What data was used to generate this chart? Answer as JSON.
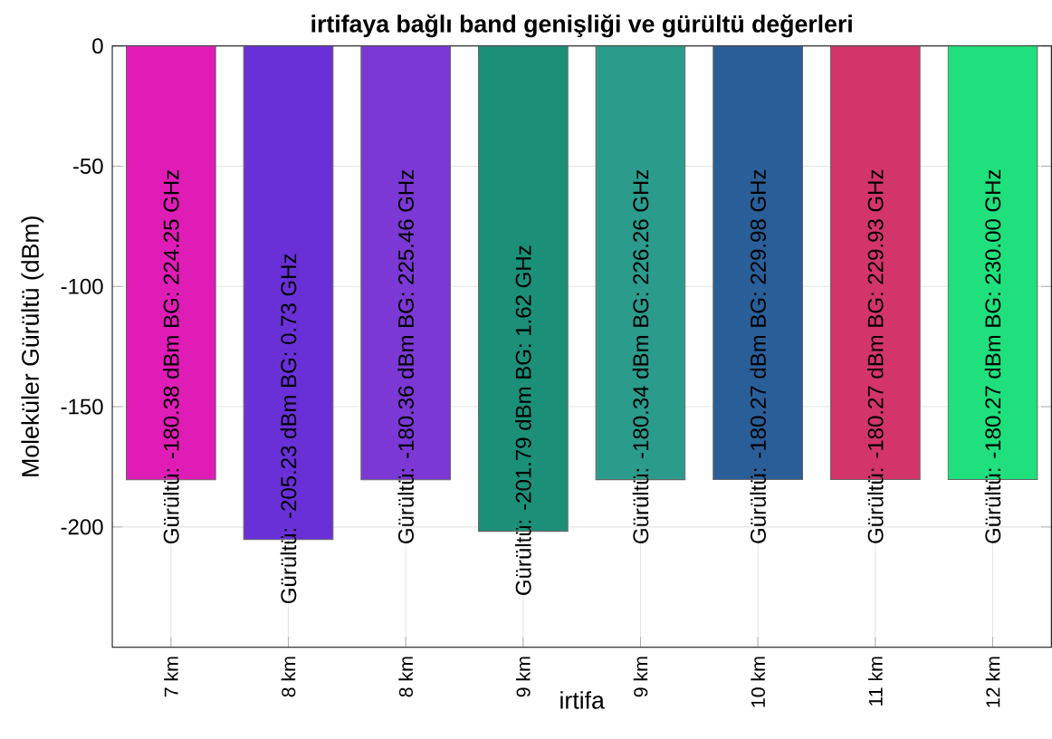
{
  "chart_data": {
    "type": "bar",
    "title": "irtifaya bağlı band genişliği ve gürültü değerleri",
    "xlabel": "irtifa",
    "ylabel": "Moleküler Gürültü (dBm)",
    "categories": [
      "7 km",
      "8 km",
      "8 km",
      "9 km",
      "9 km",
      "10 km",
      "11 km",
      "12 km"
    ],
    "values": [
      -180.38,
      -205.23,
      -180.36,
      -201.79,
      -180.34,
      -180.27,
      -180.27,
      -180.27
    ],
    "colors": [
      "#e01cb6",
      "#6a30d8",
      "#7b38d4",
      "#1c8f78",
      "#2b9b8c",
      "#2a5e98",
      "#d3356a",
      "#1fe07c"
    ],
    "value_labels": [
      "Gürültü: -180.38 dBm BG: 224.25 GHz",
      "Gürültü: -205.23 dBm BG: 0.73 GHz",
      "Gürültü: -180.36 dBm BG: 225.46 GHz",
      "Gürültü: -201.79 dBm BG: 1.62 GHz",
      "Gürültü: -180.34 dBm BG: 226.26 GHz",
      "Gürültü: -180.27 dBm BG: 229.98 GHz",
      "Gürültü: -180.27 dBm BG: 229.93 GHz",
      "Gürültü: -180.27 dBm BG: 230.00 GHz"
    ],
    "ylim": [
      -250,
      0
    ],
    "yticks": [
      0,
      -50,
      -100,
      -150,
      -200
    ],
    "grid": true
  }
}
